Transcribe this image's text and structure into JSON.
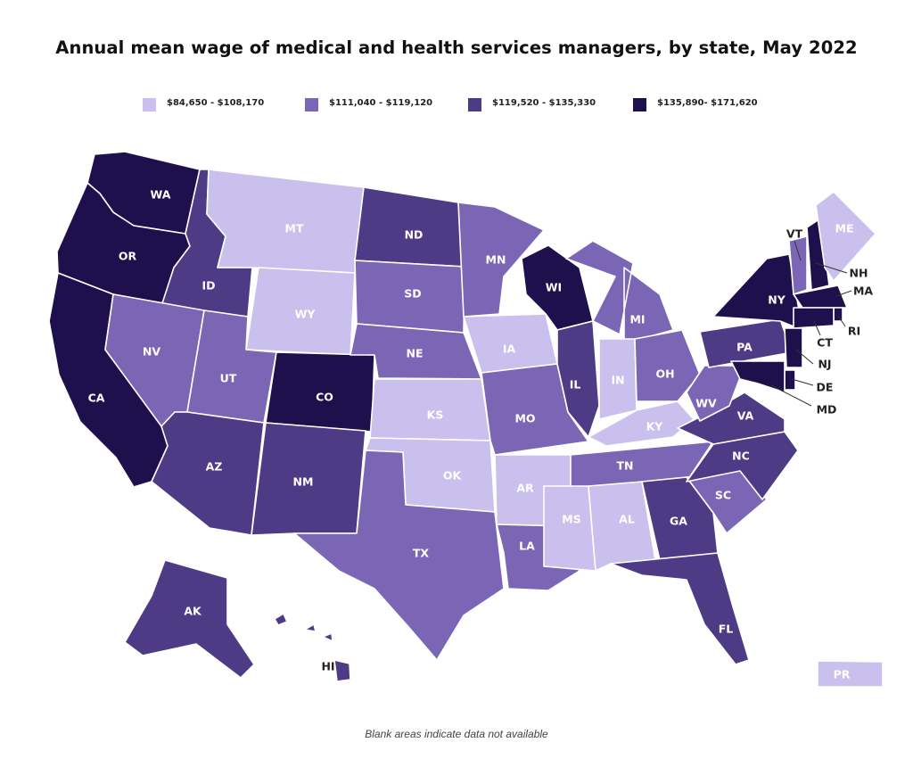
{
  "title": "Annual mean wage of medical and health services managers, by state, May 2022",
  "legend": [
    {
      "label": "$84,650 - $108,170",
      "color": "#c9c0ee"
    },
    {
      "label": "$111,040 - $119,120",
      "color": "#7b66b5"
    },
    {
      "label": "$119,520 - $135,330",
      "color": "#4e3b86"
    },
    {
      "label": "$135,890- $171,620",
      "color": "#1e0f4d"
    }
  ],
  "footnote": "Blank areas indicate data not available",
  "states": [
    {
      "abbr": "WA",
      "tier": 3
    },
    {
      "abbr": "OR",
      "tier": 3
    },
    {
      "abbr": "CA",
      "tier": 3
    },
    {
      "abbr": "ID",
      "tier": 2
    },
    {
      "abbr": "NV",
      "tier": 1
    },
    {
      "abbr": "MT",
      "tier": 0
    },
    {
      "abbr": "WY",
      "tier": 0
    },
    {
      "abbr": "UT",
      "tier": 1
    },
    {
      "abbr": "AZ",
      "tier": 2
    },
    {
      "abbr": "CO",
      "tier": 3
    },
    {
      "abbr": "NM",
      "tier": 2
    },
    {
      "abbr": "ND",
      "tier": 2
    },
    {
      "abbr": "SD",
      "tier": 1
    },
    {
      "abbr": "NE",
      "tier": 1
    },
    {
      "abbr": "KS",
      "tier": 0
    },
    {
      "abbr": "OK",
      "tier": 0
    },
    {
      "abbr": "TX",
      "tier": 1
    },
    {
      "abbr": "MN",
      "tier": 1
    },
    {
      "abbr": "IA",
      "tier": 0
    },
    {
      "abbr": "MO",
      "tier": 1
    },
    {
      "abbr": "AR",
      "tier": 0
    },
    {
      "abbr": "LA",
      "tier": 1
    },
    {
      "abbr": "WI",
      "tier": 3
    },
    {
      "abbr": "IL",
      "tier": 2
    },
    {
      "abbr": "MI",
      "tier": 1
    },
    {
      "abbr": "IN",
      "tier": 0
    },
    {
      "abbr": "OH",
      "tier": 1
    },
    {
      "abbr": "KY",
      "tier": 0
    },
    {
      "abbr": "TN",
      "tier": 1
    },
    {
      "abbr": "MS",
      "tier": 0
    },
    {
      "abbr": "AL",
      "tier": 0
    },
    {
      "abbr": "GA",
      "tier": 2
    },
    {
      "abbr": "FL",
      "tier": 2
    },
    {
      "abbr": "SC",
      "tier": 1
    },
    {
      "abbr": "NC",
      "tier": 2
    },
    {
      "abbr": "VA",
      "tier": 2
    },
    {
      "abbr": "WV",
      "tier": 1
    },
    {
      "abbr": "PA",
      "tier": 2
    },
    {
      "abbr": "NY",
      "tier": 3
    },
    {
      "abbr": "VT",
      "tier": 1
    },
    {
      "abbr": "NH",
      "tier": 3
    },
    {
      "abbr": "ME",
      "tier": 0
    },
    {
      "abbr": "MA",
      "tier": 3
    },
    {
      "abbr": "RI",
      "tier": 3
    },
    {
      "abbr": "CT",
      "tier": 3
    },
    {
      "abbr": "NJ",
      "tier": 3
    },
    {
      "abbr": "DE",
      "tier": 3
    },
    {
      "abbr": "MD",
      "tier": 3
    },
    {
      "abbr": "AK",
      "tier": 2
    },
    {
      "abbr": "HI",
      "tier": 2
    },
    {
      "abbr": "PR",
      "tier": 0
    }
  ]
}
